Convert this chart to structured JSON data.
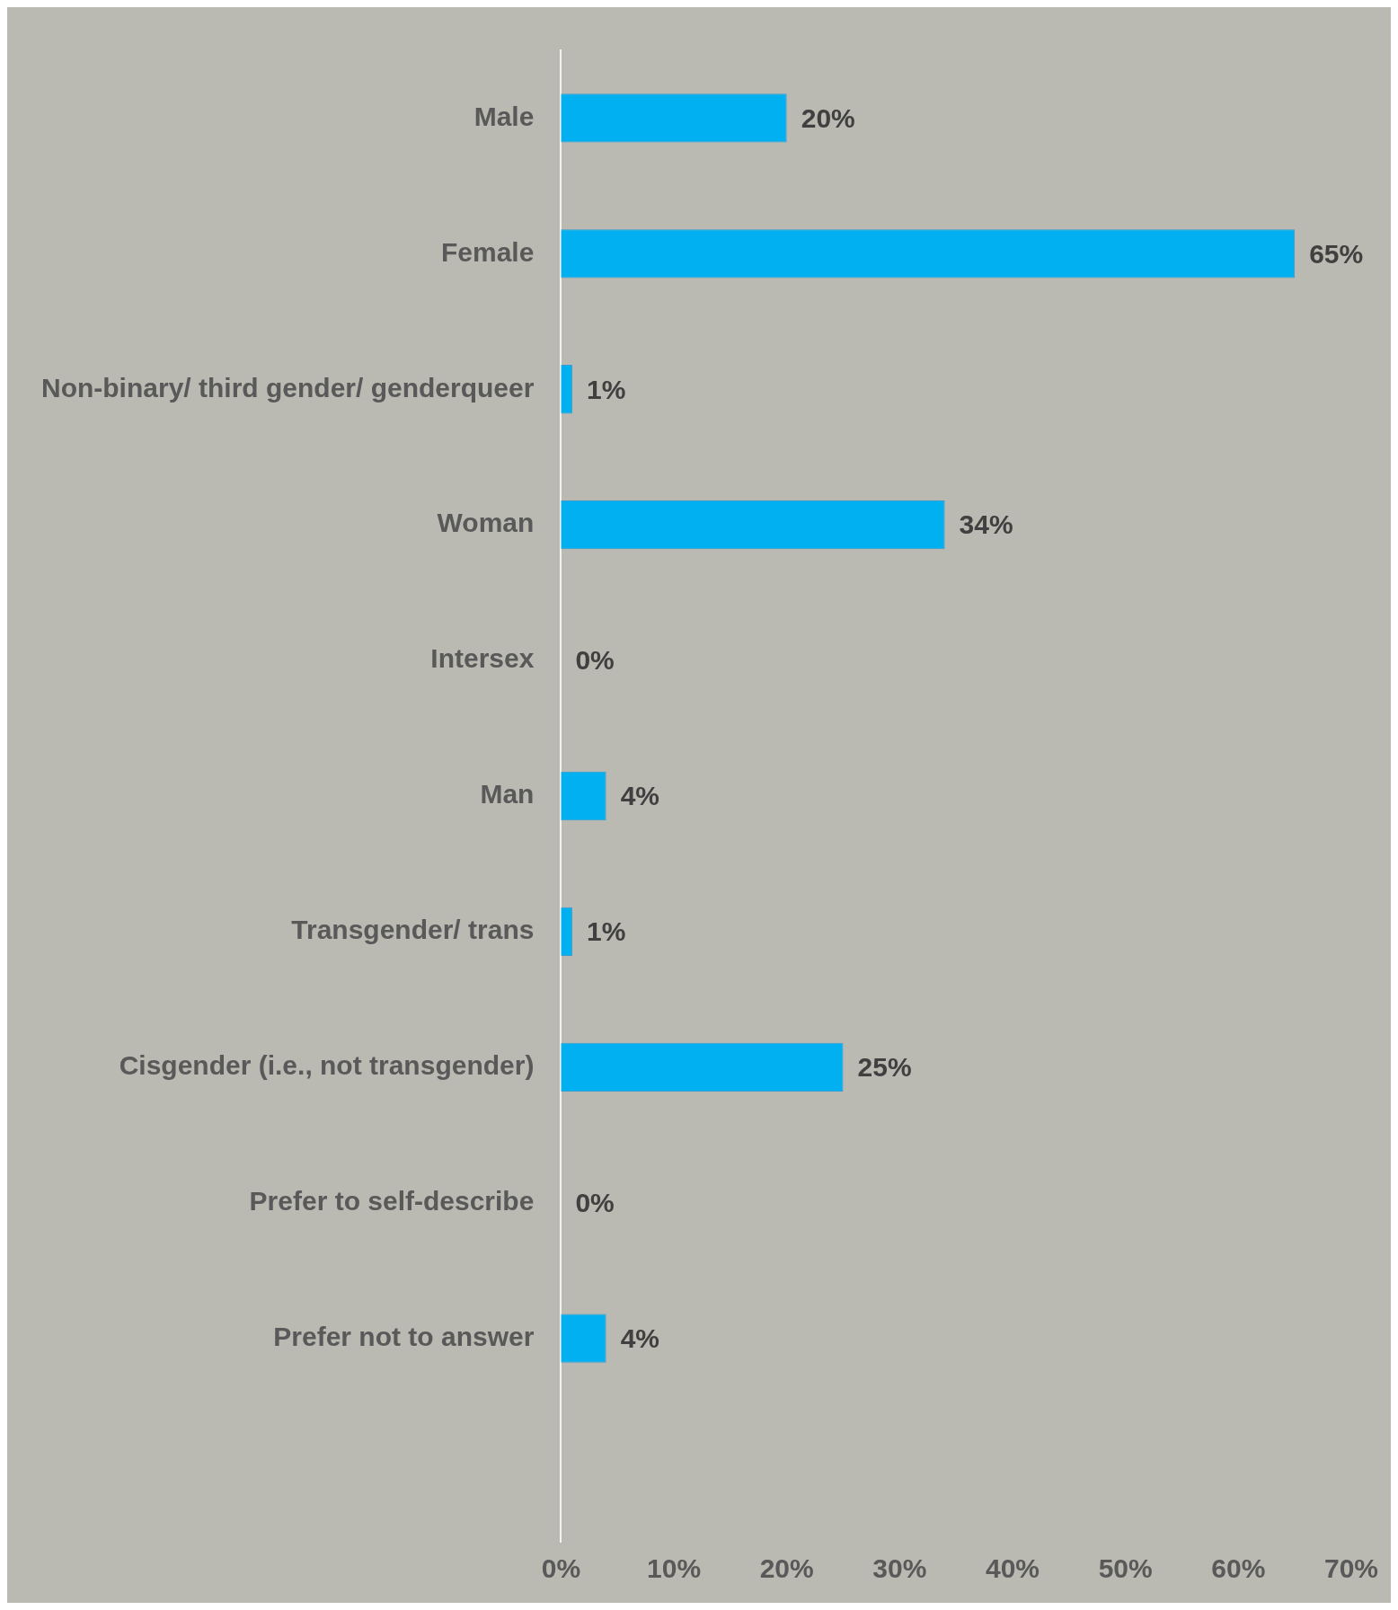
{
  "chart_data": {
    "type": "bar",
    "orientation": "horizontal",
    "categories": [
      "Male",
      "Female",
      "Non-binary/ third gender/ genderqueer",
      "Woman",
      "Intersex",
      "Man",
      "Transgender/ trans",
      "Cisgender (i.e., not transgender)",
      "Prefer to self-describe",
      "Prefer not to answer",
      null
    ],
    "values": [
      20,
      65,
      1,
      34,
      0,
      4,
      1,
      25,
      0,
      4,
      null
    ],
    "value_labels": [
      "20%",
      "65%",
      "1%",
      "34%",
      "0%",
      "4%",
      "1%",
      "25%",
      "0%",
      "4%",
      null
    ],
    "color": "#00b0f0",
    "xlim": [
      0,
      70
    ],
    "xticks": [
      {
        "value": 0,
        "label": "0%"
      },
      {
        "value": 10,
        "label": "10%"
      },
      {
        "value": 20,
        "label": "20%"
      },
      {
        "value": 30,
        "label": "30%"
      },
      {
        "value": 40,
        "label": "40%"
      },
      {
        "value": 50,
        "label": "50%"
      },
      {
        "value": 60,
        "label": "60%"
      },
      {
        "value": 70,
        "label": "70%"
      }
    ],
    "grid": false,
    "legend": false
  }
}
